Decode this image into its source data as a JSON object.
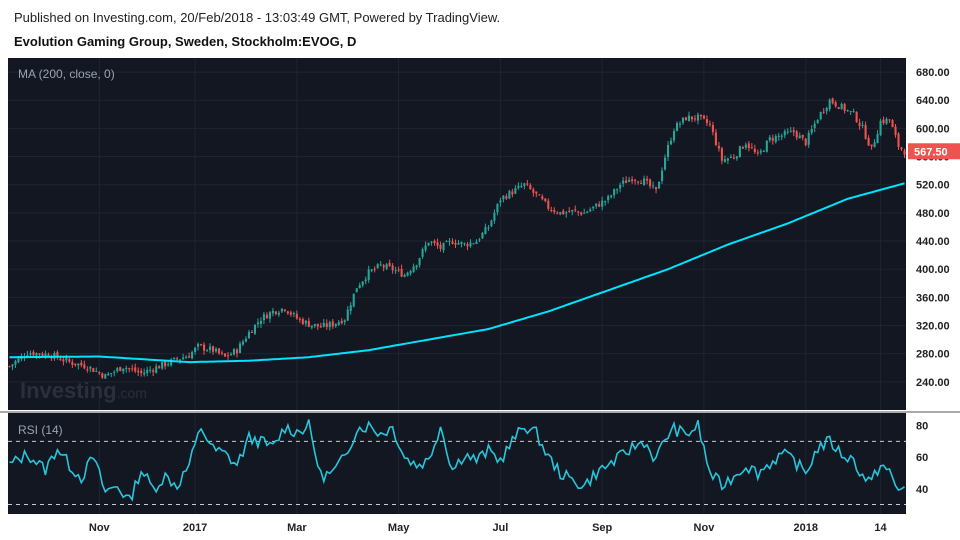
{
  "header": {
    "published": "Published on Investing.com, 20/Feb/2018 - 13:03:49 GMT, Powered by TradingView.",
    "title": "Evolution Gaming Group, Sweden, Stockholm:EVOG, D"
  },
  "watermark": {
    "brand": "Investing",
    "suffix": ".com"
  },
  "chart_data": {
    "type": "candlestick",
    "price_panel": {
      "indicator_label": "MA (200, close, 0)",
      "ylim": [
        200,
        700
      ],
      "yticks": [
        240,
        280,
        320,
        360,
        400,
        440,
        480,
        520,
        560,
        600,
        640,
        680
      ],
      "ytick_labels": [
        "240.00",
        "280.00",
        "320.00",
        "360.00",
        "400.00",
        "440.00",
        "480.00",
        "520.00",
        "560.00",
        "600.00",
        "640.00",
        "680.00"
      ],
      "last_price": 567.5,
      "last_price_label": "567.50",
      "close_anchors": [
        [
          0,
          262
        ],
        [
          6,
          282
        ],
        [
          14,
          278
        ],
        [
          20,
          268
        ],
        [
          26,
          262
        ],
        [
          32,
          248
        ],
        [
          38,
          262
        ],
        [
          44,
          252
        ],
        [
          50,
          262
        ],
        [
          56,
          272
        ],
        [
          60,
          278
        ],
        [
          63,
          290
        ],
        [
          68,
          285
        ],
        [
          72,
          275
        ],
        [
          76,
          285
        ],
        [
          80,
          310
        ],
        [
          84,
          330
        ],
        [
          88,
          340
        ],
        [
          92,
          345
        ],
        [
          96,
          330
        ],
        [
          100,
          322
        ],
        [
          104,
          318
        ],
        [
          108,
          322
        ],
        [
          112,
          330
        ],
        [
          116,
          375
        ],
        [
          120,
          395
        ],
        [
          124,
          405
        ],
        [
          128,
          400
        ],
        [
          132,
          392
        ],
        [
          136,
          410
        ],
        [
          140,
          440
        ],
        [
          144,
          430
        ],
        [
          148,
          440
        ],
        [
          152,
          435
        ],
        [
          156,
          440
        ],
        [
          160,
          460
        ],
        [
          164,
          500
        ],
        [
          168,
          510
        ],
        [
          172,
          520
        ],
        [
          176,
          505
        ],
        [
          180,
          488
        ],
        [
          184,
          480
        ],
        [
          188,
          482
        ],
        [
          192,
          480
        ],
        [
          196,
          490
        ],
        [
          200,
          500
        ],
        [
          204,
          520
        ],
        [
          208,
          530
        ],
        [
          212,
          525
        ],
        [
          216,
          510
        ],
        [
          219,
          560
        ],
        [
          222,
          600
        ],
        [
          226,
          615
        ],
        [
          230,
          615
        ],
        [
          234,
          605
        ],
        [
          238,
          555
        ],
        [
          242,
          560
        ],
        [
          246,
          580
        ],
        [
          250,
          560
        ],
        [
          254,
          585
        ],
        [
          258,
          590
        ],
        [
          262,
          595
        ],
        [
          266,
          580
        ],
        [
          270,
          615
        ],
        [
          274,
          640
        ],
        [
          278,
          630
        ],
        [
          282,
          620
        ],
        [
          285,
          600
        ],
        [
          288,
          570
        ],
        [
          291,
          610
        ],
        [
          294,
          612
        ],
        [
          297,
          575
        ],
        [
          299,
          567.5
        ]
      ],
      "ma_label": "MA 200",
      "ma_anchors": [
        [
          0,
          275
        ],
        [
          30,
          276
        ],
        [
          60,
          268
        ],
        [
          80,
          270
        ],
        [
          100,
          275
        ],
        [
          120,
          285
        ],
        [
          140,
          300
        ],
        [
          160,
          315
        ],
        [
          180,
          340
        ],
        [
          200,
          370
        ],
        [
          220,
          400
        ],
        [
          240,
          435
        ],
        [
          260,
          465
        ],
        [
          280,
          500
        ],
        [
          299,
          522
        ]
      ]
    },
    "rsi_panel": {
      "indicator_label": "RSI (14)",
      "ylim": [
        24,
        88
      ],
      "yticks": [
        40,
        60,
        80
      ],
      "ytick_labels": [
        "40",
        "60",
        "80"
      ],
      "levels": [
        30,
        70
      ],
      "rsi_anchors": [
        [
          0,
          55
        ],
        [
          6,
          62
        ],
        [
          12,
          52
        ],
        [
          16,
          66
        ],
        [
          20,
          55
        ],
        [
          24,
          47
        ],
        [
          28,
          60
        ],
        [
          32,
          38
        ],
        [
          36,
          42
        ],
        [
          40,
          32
        ],
        [
          44,
          52
        ],
        [
          48,
          40
        ],
        [
          52,
          48
        ],
        [
          56,
          42
        ],
        [
          60,
          55
        ],
        [
          64,
          79
        ],
        [
          68,
          65
        ],
        [
          72,
          62
        ],
        [
          76,
          55
        ],
        [
          80,
          72
        ],
        [
          84,
          70
        ],
        [
          88,
          66
        ],
        [
          92,
          79
        ],
        [
          96,
          76
        ],
        [
          100,
          80
        ],
        [
          104,
          48
        ],
        [
          108,
          50
        ],
        [
          112,
          60
        ],
        [
          116,
          78
        ],
        [
          120,
          80
        ],
        [
          124,
          75
        ],
        [
          128,
          79
        ],
        [
          132,
          60
        ],
        [
          136,
          55
        ],
        [
          140,
          58
        ],
        [
          144,
          80
        ],
        [
          148,
          52
        ],
        [
          152,
          62
        ],
        [
          156,
          58
        ],
        [
          160,
          64
        ],
        [
          164,
          58
        ],
        [
          168,
          70
        ],
        [
          172,
          80
        ],
        [
          176,
          75
        ],
        [
          180,
          60
        ],
        [
          184,
          50
        ],
        [
          188,
          45
        ],
        [
          192,
          42
        ],
        [
          196,
          50
        ],
        [
          200,
          55
        ],
        [
          204,
          60
        ],
        [
          208,
          66
        ],
        [
          212,
          70
        ],
        [
          216,
          58
        ],
        [
          219,
          72
        ],
        [
          222,
          78
        ],
        [
          226,
          74
        ],
        [
          230,
          80
        ],
        [
          234,
          50
        ],
        [
          238,
          42
        ],
        [
          242,
          48
        ],
        [
          246,
          55
        ],
        [
          250,
          50
        ],
        [
          254,
          56
        ],
        [
          258,
          62
        ],
        [
          262,
          58
        ],
        [
          266,
          50
        ],
        [
          270,
          66
        ],
        [
          274,
          70
        ],
        [
          278,
          62
        ],
        [
          282,
          58
        ],
        [
          285,
          48
        ],
        [
          288,
          44
        ],
        [
          291,
          56
        ],
        [
          294,
          50
        ],
        [
          297,
          38
        ],
        [
          299,
          42
        ]
      ]
    },
    "x_axis": {
      "labels": [
        {
          "text": "Nov",
          "bar": 30
        },
        {
          "text": "2017",
          "bar": 62
        },
        {
          "text": "Mar",
          "bar": 96
        },
        {
          "text": "May",
          "bar": 130
        },
        {
          "text": "Jul",
          "bar": 164
        },
        {
          "text": "Sep",
          "bar": 198
        },
        {
          "text": "Nov",
          "bar": 232
        },
        {
          "text": "2018",
          "bar": 266
        },
        {
          "text": "14",
          "bar": 291
        }
      ]
    },
    "total_bars": 300,
    "colors": {
      "background": "#131722",
      "up": "#26a69a",
      "down": "#ef5350",
      "ma": "#00e5ff",
      "rsi": "#26c6da",
      "grid": "#1f2430",
      "price_tag": "#ef5350"
    }
  }
}
